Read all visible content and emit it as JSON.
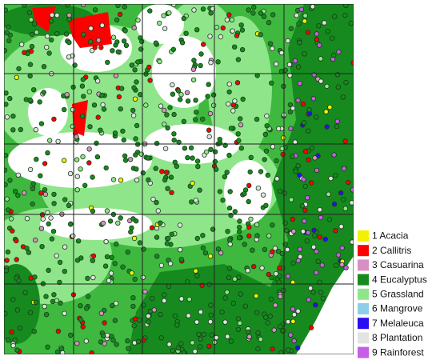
{
  "legend": {
    "items": [
      {
        "label": "1 Acacia",
        "color": "#f2f200"
      },
      {
        "label": "2 Callitris",
        "color": "#ff0000"
      },
      {
        "label": "3 Casuarina",
        "color": "#d98fc4"
      },
      {
        "label": "4 Eucalyptus",
        "color": "#168a1e"
      },
      {
        "label": "5 Grassland",
        "color": "#8fe68a"
      },
      {
        "label": "6 Mangrove",
        "color": "#8ccfe8"
      },
      {
        "label": "7 Melaleuca",
        "color": "#2a0df0"
      },
      {
        "label": "8 Plantation",
        "color": "#e3e3e3"
      },
      {
        "label": "9 Rainforest",
        "color": "#c75ee6"
      }
    ]
  }
}
